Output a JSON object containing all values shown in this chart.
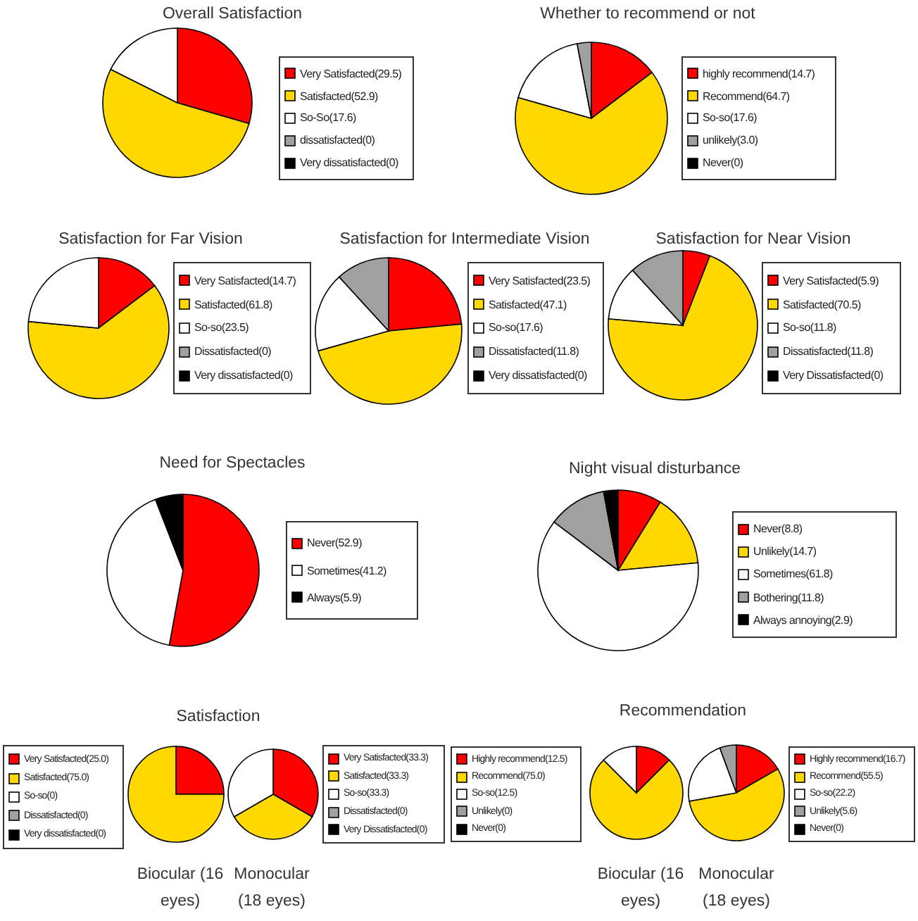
{
  "chart_data": [
    {
      "type": "pie",
      "title": "Overall Satisfaction",
      "categories": [
        "Very Satisfacted(29.5)",
        "Satisfacted(52.9)",
        "So-So(17.6)",
        "dissatisfacted(0)",
        "Very dissatisfacted(0)"
      ],
      "values": [
        29.5,
        52.9,
        17.6,
        0,
        0
      ],
      "colors": [
        "#ff0000",
        "#ffd800",
        "#ffffff",
        "#a0a0a0",
        "#000000"
      ],
      "legend": "right"
    },
    {
      "type": "pie",
      "title": "Whether to recommend or not",
      "categories": [
        "highly recommend(14.7)",
        "Recommend(64.7)",
        "So-so(17.6)",
        "unlikely(3.0)",
        "Never(0)"
      ],
      "values": [
        14.7,
        64.7,
        17.6,
        3.0,
        0
      ],
      "colors": [
        "#ff0000",
        "#ffd800",
        "#ffffff",
        "#a0a0a0",
        "#000000"
      ],
      "legend": "right"
    },
    {
      "type": "pie",
      "title": "Satisfaction for Far Vision",
      "categories": [
        "Very Satisfacted(14.7)",
        "Satisfacted(61.8)",
        "So-so(23.5)",
        "Dissatisfacted(0)",
        "Very dissatisfacted(0)"
      ],
      "values": [
        14.7,
        61.8,
        23.5,
        0,
        0
      ],
      "colors": [
        "#ff0000",
        "#ffd800",
        "#ffffff",
        "#a0a0a0",
        "#000000"
      ],
      "legend": "right"
    },
    {
      "type": "pie",
      "title": "Satisfaction for Intermediate Vision",
      "categories": [
        "Very Satisfacted(23.5)",
        "Satisfacted(47.1)",
        "So-so(17.6)",
        "Dissatisfacted(11.8)",
        "Very dissatisfacted(0)"
      ],
      "values": [
        23.5,
        47.1,
        17.6,
        11.8,
        0
      ],
      "colors": [
        "#ff0000",
        "#ffd800",
        "#ffffff",
        "#a0a0a0",
        "#000000"
      ],
      "legend": "right"
    },
    {
      "type": "pie",
      "title": "Satisfaction for Near Vision",
      "categories": [
        "Very Satisfacted(5.9)",
        "Satisfacted(70.5)",
        "So-so(11.8)",
        "Dissatisfacted(11.8)",
        "Very Dissatisfacted(0)"
      ],
      "values": [
        5.9,
        70.5,
        11.8,
        11.8,
        0
      ],
      "colors": [
        "#ff0000",
        "#ffd800",
        "#ffffff",
        "#a0a0a0",
        "#000000"
      ],
      "legend": "right"
    },
    {
      "type": "pie",
      "title": "Need for Spectacles",
      "categories": [
        "Never(52.9)",
        "Sometimes(41.2)",
        "Always(5.9)"
      ],
      "values": [
        52.9,
        41.2,
        5.9
      ],
      "colors": [
        "#ff0000",
        "#ffffff",
        "#000000"
      ],
      "legend": "right"
    },
    {
      "type": "pie",
      "title": "Night visual disturbance",
      "categories": [
        "Never(8.8)",
        "Unlikely(14.7)",
        "Sometimes(61.8)",
        "Bothering(11.8)",
        "Always annoying(2.9)"
      ],
      "values": [
        8.8,
        14.7,
        61.8,
        11.8,
        2.9
      ],
      "colors": [
        "#ff0000",
        "#ffd800",
        "#ffffff",
        "#a0a0a0",
        "#000000"
      ],
      "legend": "right"
    },
    {
      "type": "pie",
      "title": "Satisfaction",
      "xlabel": "Biocular (16 eyes)",
      "categories": [
        "Very Satisfacted(25.0)",
        "Satisfacted(75.0)",
        "So-so(0)",
        "Dissatisfacted(0)",
        "Very dissatisfacted(0)"
      ],
      "values": [
        25.0,
        75.0,
        0,
        0,
        0
      ],
      "colors": [
        "#ff0000",
        "#ffd800",
        "#ffffff",
        "#a0a0a0",
        "#000000"
      ],
      "legend": "left"
    },
    {
      "type": "pie",
      "xlabel": "Monocular (18 eyes)",
      "categories": [
        "Very Satisfacted(33.3)",
        "Satisfacted(33.3)",
        "So-so(33.3)",
        "Dissatisfacted(0)",
        "Very Dissatisfacted(0)"
      ],
      "values": [
        33.3,
        33.3,
        33.3,
        0,
        0
      ],
      "colors": [
        "#ff0000",
        "#ffd800",
        "#ffffff",
        "#a0a0a0",
        "#000000"
      ],
      "legend": "right"
    },
    {
      "type": "pie",
      "title": "Recommendation",
      "xlabel": "Biocular (16 eyes)",
      "categories": [
        "Highly recommend(12.5)",
        "Recommend(75.0)",
        "So-so(12.5)",
        "Unlikely(0)",
        "Never(0)"
      ],
      "values": [
        12.5,
        75.0,
        12.5,
        0,
        0
      ],
      "colors": [
        "#ff0000",
        "#ffd800",
        "#ffffff",
        "#a0a0a0",
        "#000000"
      ],
      "legend": "left"
    },
    {
      "type": "pie",
      "xlabel": "Monocular (18 eyes)",
      "categories": [
        "Highly recommend(16.7)",
        "Recommend(55.5)",
        "So-so(22.2)",
        "Unlikely(5.6)",
        "Never(0)"
      ],
      "values": [
        16.7,
        55.5,
        22.2,
        5.6,
        0
      ],
      "colors": [
        "#ff0000",
        "#ffd800",
        "#ffffff",
        "#a0a0a0",
        "#000000"
      ],
      "legend": "right"
    }
  ]
}
